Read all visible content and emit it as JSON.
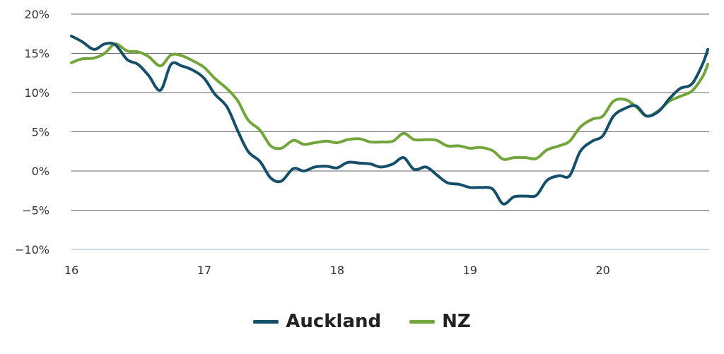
{
  "chart_data": {
    "type": "line",
    "title": "",
    "xlabel": "",
    "ylabel": "",
    "xlim": [
      16,
      20.8
    ],
    "ylim": [
      -10,
      20
    ],
    "x_ticks": [
      16,
      17,
      18,
      19,
      20
    ],
    "x_tick_labels": [
      "16",
      "17",
      "18",
      "19",
      "20"
    ],
    "y_ticks": [
      -10,
      -5,
      0,
      5,
      10,
      15,
      20
    ],
    "y_tick_labels": [
      "−10%",
      "−5%",
      "0%",
      "5%",
      "10%",
      "15%",
      "20%"
    ],
    "grid": "horizontal",
    "legend": "bottom-center",
    "colors": {
      "Auckland": "#164f6a",
      "NZ": "#72a63c",
      "grid": "#666666",
      "axis": "#b8c7d3"
    },
    "series": [
      {
        "name": "Auckland",
        "x": [
          16.0,
          16.08,
          16.17,
          16.25,
          16.33,
          16.42,
          16.5,
          16.58,
          16.67,
          16.75,
          16.83,
          16.92,
          17.0,
          17.08,
          17.17,
          17.25,
          17.33,
          17.42,
          17.5,
          17.58,
          17.67,
          17.75,
          17.83,
          17.92,
          18.0,
          18.08,
          18.17,
          18.25,
          18.33,
          18.42,
          18.5,
          18.58,
          18.67,
          18.75,
          18.83,
          18.92,
          19.0,
          19.08,
          19.17,
          19.25,
          19.33,
          19.42,
          19.5,
          19.58,
          19.67,
          19.75,
          19.83,
          19.92,
          20.0,
          20.08,
          20.17,
          20.25,
          20.33,
          20.42,
          20.5,
          20.58,
          20.67,
          20.75,
          20.79
        ],
        "y": [
          17.2,
          16.5,
          15.5,
          16.2,
          16.1,
          14.2,
          13.6,
          12.2,
          10.3,
          13.6,
          13.4,
          12.8,
          11.8,
          9.8,
          8.2,
          5.2,
          2.5,
          1.2,
          -0.9,
          -1.3,
          0.3,
          0.0,
          0.5,
          0.6,
          0.4,
          1.1,
          1.0,
          0.9,
          0.5,
          0.9,
          1.7,
          0.2,
          0.5,
          -0.5,
          -1.5,
          -1.7,
          -2.1,
          -2.1,
          -2.3,
          -4.2,
          -3.3,
          -3.2,
          -3.1,
          -1.2,
          -0.6,
          -0.6,
          2.5,
          3.8,
          4.5,
          7.0,
          8.0,
          8.3,
          7.0,
          7.6,
          9.2,
          10.5,
          11.1,
          13.6,
          15.5
        ]
      },
      {
        "name": "NZ",
        "x": [
          16.0,
          16.08,
          16.17,
          16.25,
          16.33,
          16.42,
          16.5,
          16.58,
          16.67,
          16.75,
          16.83,
          16.92,
          17.0,
          17.08,
          17.17,
          17.25,
          17.33,
          17.42,
          17.5,
          17.58,
          17.67,
          17.75,
          17.83,
          17.92,
          18.0,
          18.08,
          18.17,
          18.25,
          18.33,
          18.42,
          18.5,
          18.58,
          18.67,
          18.75,
          18.83,
          18.92,
          19.0,
          19.08,
          19.17,
          19.25,
          19.33,
          19.42,
          19.5,
          19.58,
          19.67,
          19.75,
          19.83,
          19.92,
          20.0,
          20.08,
          20.17,
          20.25,
          20.33,
          20.42,
          20.5,
          20.58,
          20.67,
          20.75,
          20.79
        ],
        "y": [
          13.8,
          14.3,
          14.4,
          15.0,
          16.2,
          15.3,
          15.2,
          14.6,
          13.4,
          14.8,
          14.7,
          14.0,
          13.2,
          11.8,
          10.5,
          9.0,
          6.5,
          5.2,
          3.2,
          2.9,
          3.9,
          3.4,
          3.6,
          3.8,
          3.6,
          4.0,
          4.1,
          3.7,
          3.7,
          3.8,
          4.8,
          4.0,
          4.0,
          3.9,
          3.2,
          3.2,
          2.9,
          3.0,
          2.6,
          1.5,
          1.7,
          1.7,
          1.6,
          2.7,
          3.2,
          3.8,
          5.6,
          6.6,
          7.0,
          8.9,
          9.1,
          8.2,
          7.0,
          7.7,
          8.9,
          9.5,
          10.2,
          12.0,
          13.6
        ]
      }
    ]
  }
}
